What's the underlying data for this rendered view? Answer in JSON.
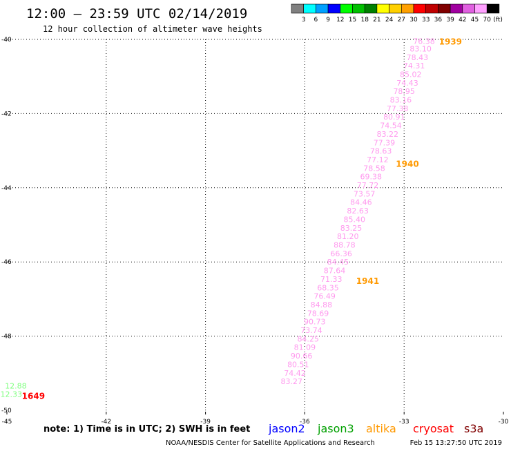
{
  "header": {
    "title": "12:00 – 23:59 UTC 02/14/2019",
    "subtitle": "12 hour collection of altimeter wave heights"
  },
  "legend": {
    "unit": "(ft)",
    "bins": [
      {
        "label": "3",
        "color": "#808080"
      },
      {
        "label": "6",
        "color": "#00ffff"
      },
      {
        "label": "9",
        "color": "#00a0ff"
      },
      {
        "label": "12",
        "color": "#0000ff"
      },
      {
        "label": "15",
        "color": "#00ff00"
      },
      {
        "label": "18",
        "color": "#00c000"
      },
      {
        "label": "21",
        "color": "#008000"
      },
      {
        "label": "24",
        "color": "#ffff00"
      },
      {
        "label": "27",
        "color": "#ffd000"
      },
      {
        "label": "30",
        "color": "#ffa000"
      },
      {
        "label": "33",
        "color": "#ff0000"
      },
      {
        "label": "36",
        "color": "#c00000"
      },
      {
        "label": "39",
        "color": "#800000"
      },
      {
        "label": "42",
        "color": "#a000a0"
      },
      {
        "label": "45",
        "color": "#e060e0"
      },
      {
        "label": "70",
        "color": "#ffa0ff"
      },
      {
        "label": "",
        "color": "#000000"
      }
    ]
  },
  "chart_data": {
    "type": "scatter",
    "xlim": [
      -45,
      -30
    ],
    "ylim": [
      -50,
      -40
    ],
    "xticks": [
      "-45",
      "-42",
      "-39",
      "-36",
      "-33",
      "-30"
    ],
    "yticks": [
      "-40",
      "-42",
      "-44",
      "-46",
      "-48",
      "-50"
    ],
    "grid": true,
    "series": [
      {
        "satellite": "jason3",
        "color": "#80ff80",
        "points": [
          {
            "lon": -44.73,
            "lat": -49.34,
            "value": "12.88"
          },
          {
            "lon": -44.87,
            "lat": -49.56,
            "value": "12.33"
          }
        ]
      },
      {
        "satellite": "s3a",
        "color": "#ff99ee",
        "points": [
          {
            "lon": -32.4,
            "lat": -40.05,
            "value": "76.38"
          },
          {
            "lon": -32.5,
            "lat": -40.25,
            "value": "83.10"
          },
          {
            "lon": -32.6,
            "lat": -40.48,
            "value": "78.43"
          },
          {
            "lon": -32.7,
            "lat": -40.71,
            "value": "74.31"
          },
          {
            "lon": -32.8,
            "lat": -40.94,
            "value": "85.02"
          },
          {
            "lon": -32.9,
            "lat": -41.17,
            "value": "74.43"
          },
          {
            "lon": -33.0,
            "lat": -41.4,
            "value": "78.95"
          },
          {
            "lon": -33.1,
            "lat": -41.63,
            "value": "83.16"
          },
          {
            "lon": -33.2,
            "lat": -41.86,
            "value": "77.38"
          },
          {
            "lon": -33.3,
            "lat": -42.09,
            "value": "80.91"
          },
          {
            "lon": -33.4,
            "lat": -42.32,
            "value": "74.54"
          },
          {
            "lon": -33.5,
            "lat": -42.55,
            "value": "83.22"
          },
          {
            "lon": -33.6,
            "lat": -42.78,
            "value": "77.39"
          },
          {
            "lon": -33.7,
            "lat": -43.01,
            "value": "78.63"
          },
          {
            "lon": -33.8,
            "lat": -43.24,
            "value": "77.12"
          },
          {
            "lon": -33.9,
            "lat": -43.47,
            "value": "78.58"
          },
          {
            "lon": -34.0,
            "lat": -43.7,
            "value": "69.38"
          },
          {
            "lon": -34.1,
            "lat": -43.93,
            "value": "77.72"
          },
          {
            "lon": -34.2,
            "lat": -44.16,
            "value": "73.57"
          },
          {
            "lon": -34.3,
            "lat": -44.39,
            "value": "84.46"
          },
          {
            "lon": -34.4,
            "lat": -44.62,
            "value": "82.63"
          },
          {
            "lon": -34.5,
            "lat": -44.85,
            "value": "85.40"
          },
          {
            "lon": -34.6,
            "lat": -45.08,
            "value": "83.25"
          },
          {
            "lon": -34.7,
            "lat": -45.31,
            "value": "81.20"
          },
          {
            "lon": -34.8,
            "lat": -45.54,
            "value": "88.78"
          },
          {
            "lon": -34.9,
            "lat": -45.77,
            "value": "66.36"
          },
          {
            "lon": -35.0,
            "lat": -46.0,
            "value": "84.45"
          },
          {
            "lon": -35.1,
            "lat": -46.23,
            "value": "87.64"
          },
          {
            "lon": -35.2,
            "lat": -46.46,
            "value": "71.33"
          },
          {
            "lon": -35.3,
            "lat": -46.69,
            "value": "68.35"
          },
          {
            "lon": -35.4,
            "lat": -46.92,
            "value": "76.49"
          },
          {
            "lon": -35.5,
            "lat": -47.15,
            "value": "84.88"
          },
          {
            "lon": -35.6,
            "lat": -47.38,
            "value": "78.69"
          },
          {
            "lon": -35.7,
            "lat": -47.61,
            "value": "90.73"
          },
          {
            "lon": -35.8,
            "lat": -47.84,
            "value": "73.74"
          },
          {
            "lon": -35.9,
            "lat": -48.07,
            "value": "84.25"
          },
          {
            "lon": -36.0,
            "lat": -48.3,
            "value": "81.09"
          },
          {
            "lon": -36.1,
            "lat": -48.53,
            "value": "90.66"
          },
          {
            "lon": -36.2,
            "lat": -48.76,
            "value": "80.51"
          },
          {
            "lon": -36.3,
            "lat": -48.99,
            "value": "74.42"
          },
          {
            "lon": -36.4,
            "lat": -49.22,
            "value": "83.27"
          }
        ]
      }
    ],
    "time_labels": [
      {
        "text": "1939",
        "lon": -31.6,
        "lat": -40.05,
        "color": "#ff9900"
      },
      {
        "text": "1940",
        "lon": -32.9,
        "lat": -43.34,
        "color": "#ff9900"
      },
      {
        "text": "1941",
        "lon": -34.1,
        "lat": -46.5,
        "color": "#ff9900"
      },
      {
        "text": "1649",
        "lon": -44.2,
        "lat": -49.6,
        "color": "#ff0000"
      }
    ]
  },
  "footer": {
    "note": "note: 1) Time is in UTC; 2) SWH is in feet",
    "satellites": [
      {
        "name": "jason2",
        "color": "#0000ff"
      },
      {
        "name": "jason3",
        "color": "#00a000"
      },
      {
        "name": "altika",
        "color": "#ff9900"
      },
      {
        "name": "cryosat",
        "color": "#ff0000"
      },
      {
        "name": "s3a",
        "color": "#800000"
      }
    ],
    "credit": "NOAA/NESDIS Center for Satellite Applications and Research",
    "timestamp": "Feb 15 13:27:50 UTC 2019"
  }
}
